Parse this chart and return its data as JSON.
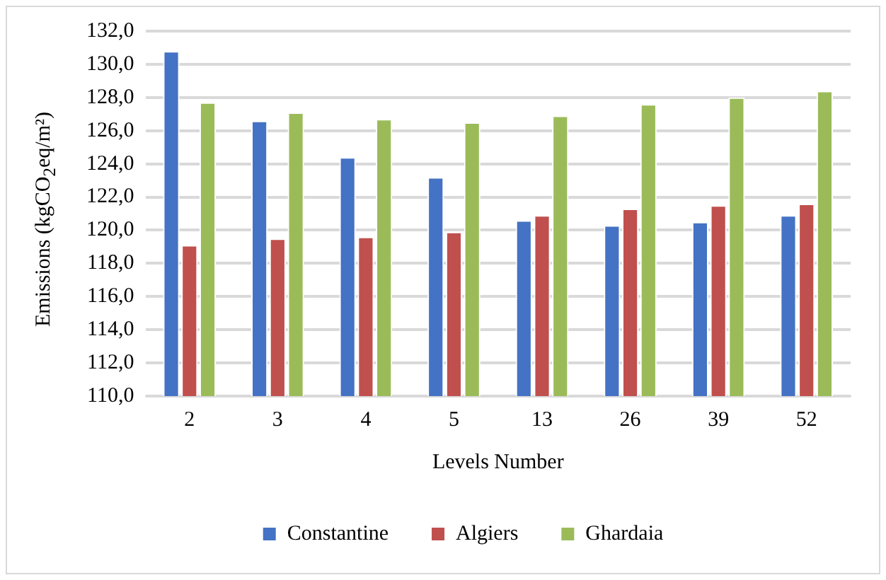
{
  "chart_data": {
    "type": "bar",
    "xlabel": "Levels Number",
    "ylabel": "Emissions (kgCO$_{2}$eq/m²)",
    "categories": [
      "2",
      "3",
      "4",
      "5",
      "13",
      "26",
      "39",
      "52"
    ],
    "series": [
      {
        "name": "Constantine",
        "color": "#4472c4",
        "values": [
          130.8,
          126.6,
          124.4,
          123.2,
          120.6,
          120.3,
          120.5,
          120.9
        ]
      },
      {
        "name": "Algiers",
        "color": "#c0504d",
        "values": [
          119.1,
          119.5,
          119.6,
          119.9,
          120.9,
          121.3,
          121.5,
          121.6
        ]
      },
      {
        "name": "Ghardaia",
        "color": "#9bbb59",
        "values": [
          127.7,
          127.1,
          126.7,
          126.5,
          126.9,
          127.6,
          128.0,
          128.4
        ]
      }
    ],
    "ylim": [
      110,
      132
    ],
    "yticks": [
      {
        "value": 110,
        "label": "110,0"
      },
      {
        "value": 112,
        "label": "112,0"
      },
      {
        "value": 114,
        "label": "114,0"
      },
      {
        "value": 116,
        "label": "116,0"
      },
      {
        "value": 118,
        "label": "118,0"
      },
      {
        "value": 120,
        "label": "120,0"
      },
      {
        "value": 122,
        "label": "122,0"
      },
      {
        "value": 124,
        "label": "124,0"
      },
      {
        "value": 126,
        "label": "126,0"
      },
      {
        "value": 128,
        "label": "128,0"
      },
      {
        "value": 130,
        "label": "130,0"
      },
      {
        "value": 132,
        "label": "132,0"
      }
    ],
    "grid": "y",
    "legend": "bottom"
  }
}
